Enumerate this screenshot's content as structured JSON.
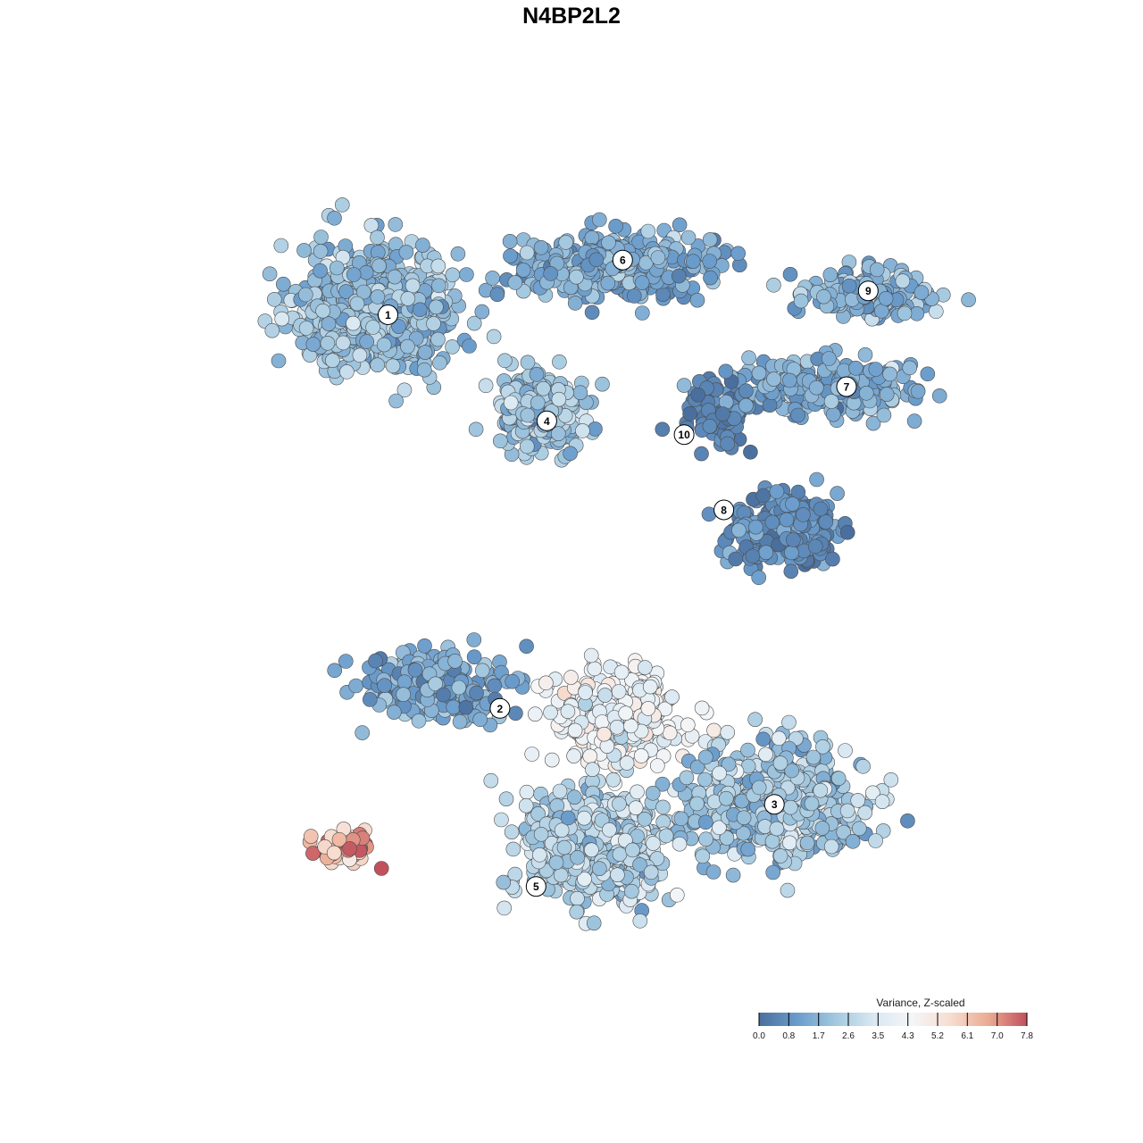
{
  "title": "N4BP2L2",
  "chart_data": {
    "type": "scatter",
    "title": "N4BP2L2",
    "xlabel": "",
    "ylabel": "",
    "grid": false,
    "legend": {
      "title": "Variance, Z-scaled",
      "placement": "bottom-right",
      "ticks": [
        "0.0",
        "0.8",
        "1.7",
        "2.6",
        "3.5",
        "4.3",
        "5.2",
        "6.1",
        "7.0",
        "7.8"
      ],
      "range": [
        0.0,
        7.8
      ]
    },
    "colorscale": [
      "#4a6f9e",
      "#6a9ccc",
      "#a3c8df",
      "#d9e8f2",
      "#f4f6f8",
      "#f7ddd0",
      "#ebaa92",
      "#c2505c"
    ],
    "clusters": [
      {
        "label": "1",
        "x": -6.0,
        "y": 5.2,
        "sx": 2.0,
        "sy": 1.7,
        "n": 620,
        "mean": 2.0,
        "sd": 0.55
      },
      {
        "label": "6",
        "x": 0.6,
        "y": 6.4,
        "sx": 2.4,
        "sy": 0.8,
        "n": 420,
        "mean": 1.5,
        "sd": 0.5
      },
      {
        "label": "4",
        "x": -1.5,
        "y": 2.2,
        "sx": 1.0,
        "sy": 1.0,
        "n": 360,
        "mean": 2.2,
        "sd": 0.6
      },
      {
        "label": "10",
        "x": 3.4,
        "y": 2.1,
        "sx": 0.9,
        "sy": 0.8,
        "n": 110,
        "mean": 0.5,
        "sd": 0.35
      },
      {
        "label": "9",
        "x": 7.6,
        "y": 5.6,
        "sx": 1.6,
        "sy": 0.7,
        "n": 170,
        "mean": 1.7,
        "sd": 0.5
      },
      {
        "label": "7",
        "x": 6.5,
        "y": 2.9,
        "sx": 2.2,
        "sy": 0.7,
        "n": 240,
        "mean": 1.5,
        "sd": 0.5
      },
      {
        "label": "8",
        "x": 5.2,
        "y": -1.3,
        "sx": 1.4,
        "sy": 0.9,
        "n": 260,
        "mean": 0.8,
        "sd": 0.45
      },
      {
        "label": "2",
        "x": -4.4,
        "y": -5.8,
        "sx": 1.8,
        "sy": 0.9,
        "n": 240,
        "mean": 1.4,
        "sd": 0.55
      },
      {
        "label": "3",
        "x": 4.9,
        "y": -9.2,
        "sx": 2.2,
        "sy": 1.4,
        "n": 520,
        "mean": 2.4,
        "sd": 0.7
      },
      {
        "label": "5",
        "x": 0.1,
        "y": -10.5,
        "sx": 1.8,
        "sy": 1.4,
        "n": 560,
        "mean": 2.6,
        "sd": 0.7
      },
      {
        "label": "",
        "x": 0.6,
        "y": -6.8,
        "sx": 1.6,
        "sy": 1.2,
        "n": 360,
        "mean": 4.1,
        "sd": 0.6
      },
      {
        "label": "",
        "x": -6.9,
        "y": -10.6,
        "sx": 0.9,
        "sy": 0.4,
        "n": 60,
        "mean": 6.0,
        "sd": 1.3
      }
    ],
    "label_positions": [
      {
        "label": "1",
        "x": -5.7,
        "y": 5.0
      },
      {
        "label": "6",
        "x": 0.8,
        "y": 6.6
      },
      {
        "label": "4",
        "x": -1.3,
        "y": 1.9
      },
      {
        "label": "10",
        "x": 2.5,
        "y": 1.5
      },
      {
        "label": "9",
        "x": 7.6,
        "y": 5.7
      },
      {
        "label": "7",
        "x": 7.0,
        "y": 2.9
      },
      {
        "label": "8",
        "x": 3.6,
        "y": -0.7
      },
      {
        "label": "2",
        "x": -2.6,
        "y": -6.5
      },
      {
        "label": "3",
        "x": 5.0,
        "y": -9.3
      },
      {
        "label": "5",
        "x": -1.6,
        "y": -11.7
      }
    ],
    "xlim": [
      -11.5,
      11.5
    ],
    "ylim": [
      -14.5,
      9.5
    ]
  }
}
